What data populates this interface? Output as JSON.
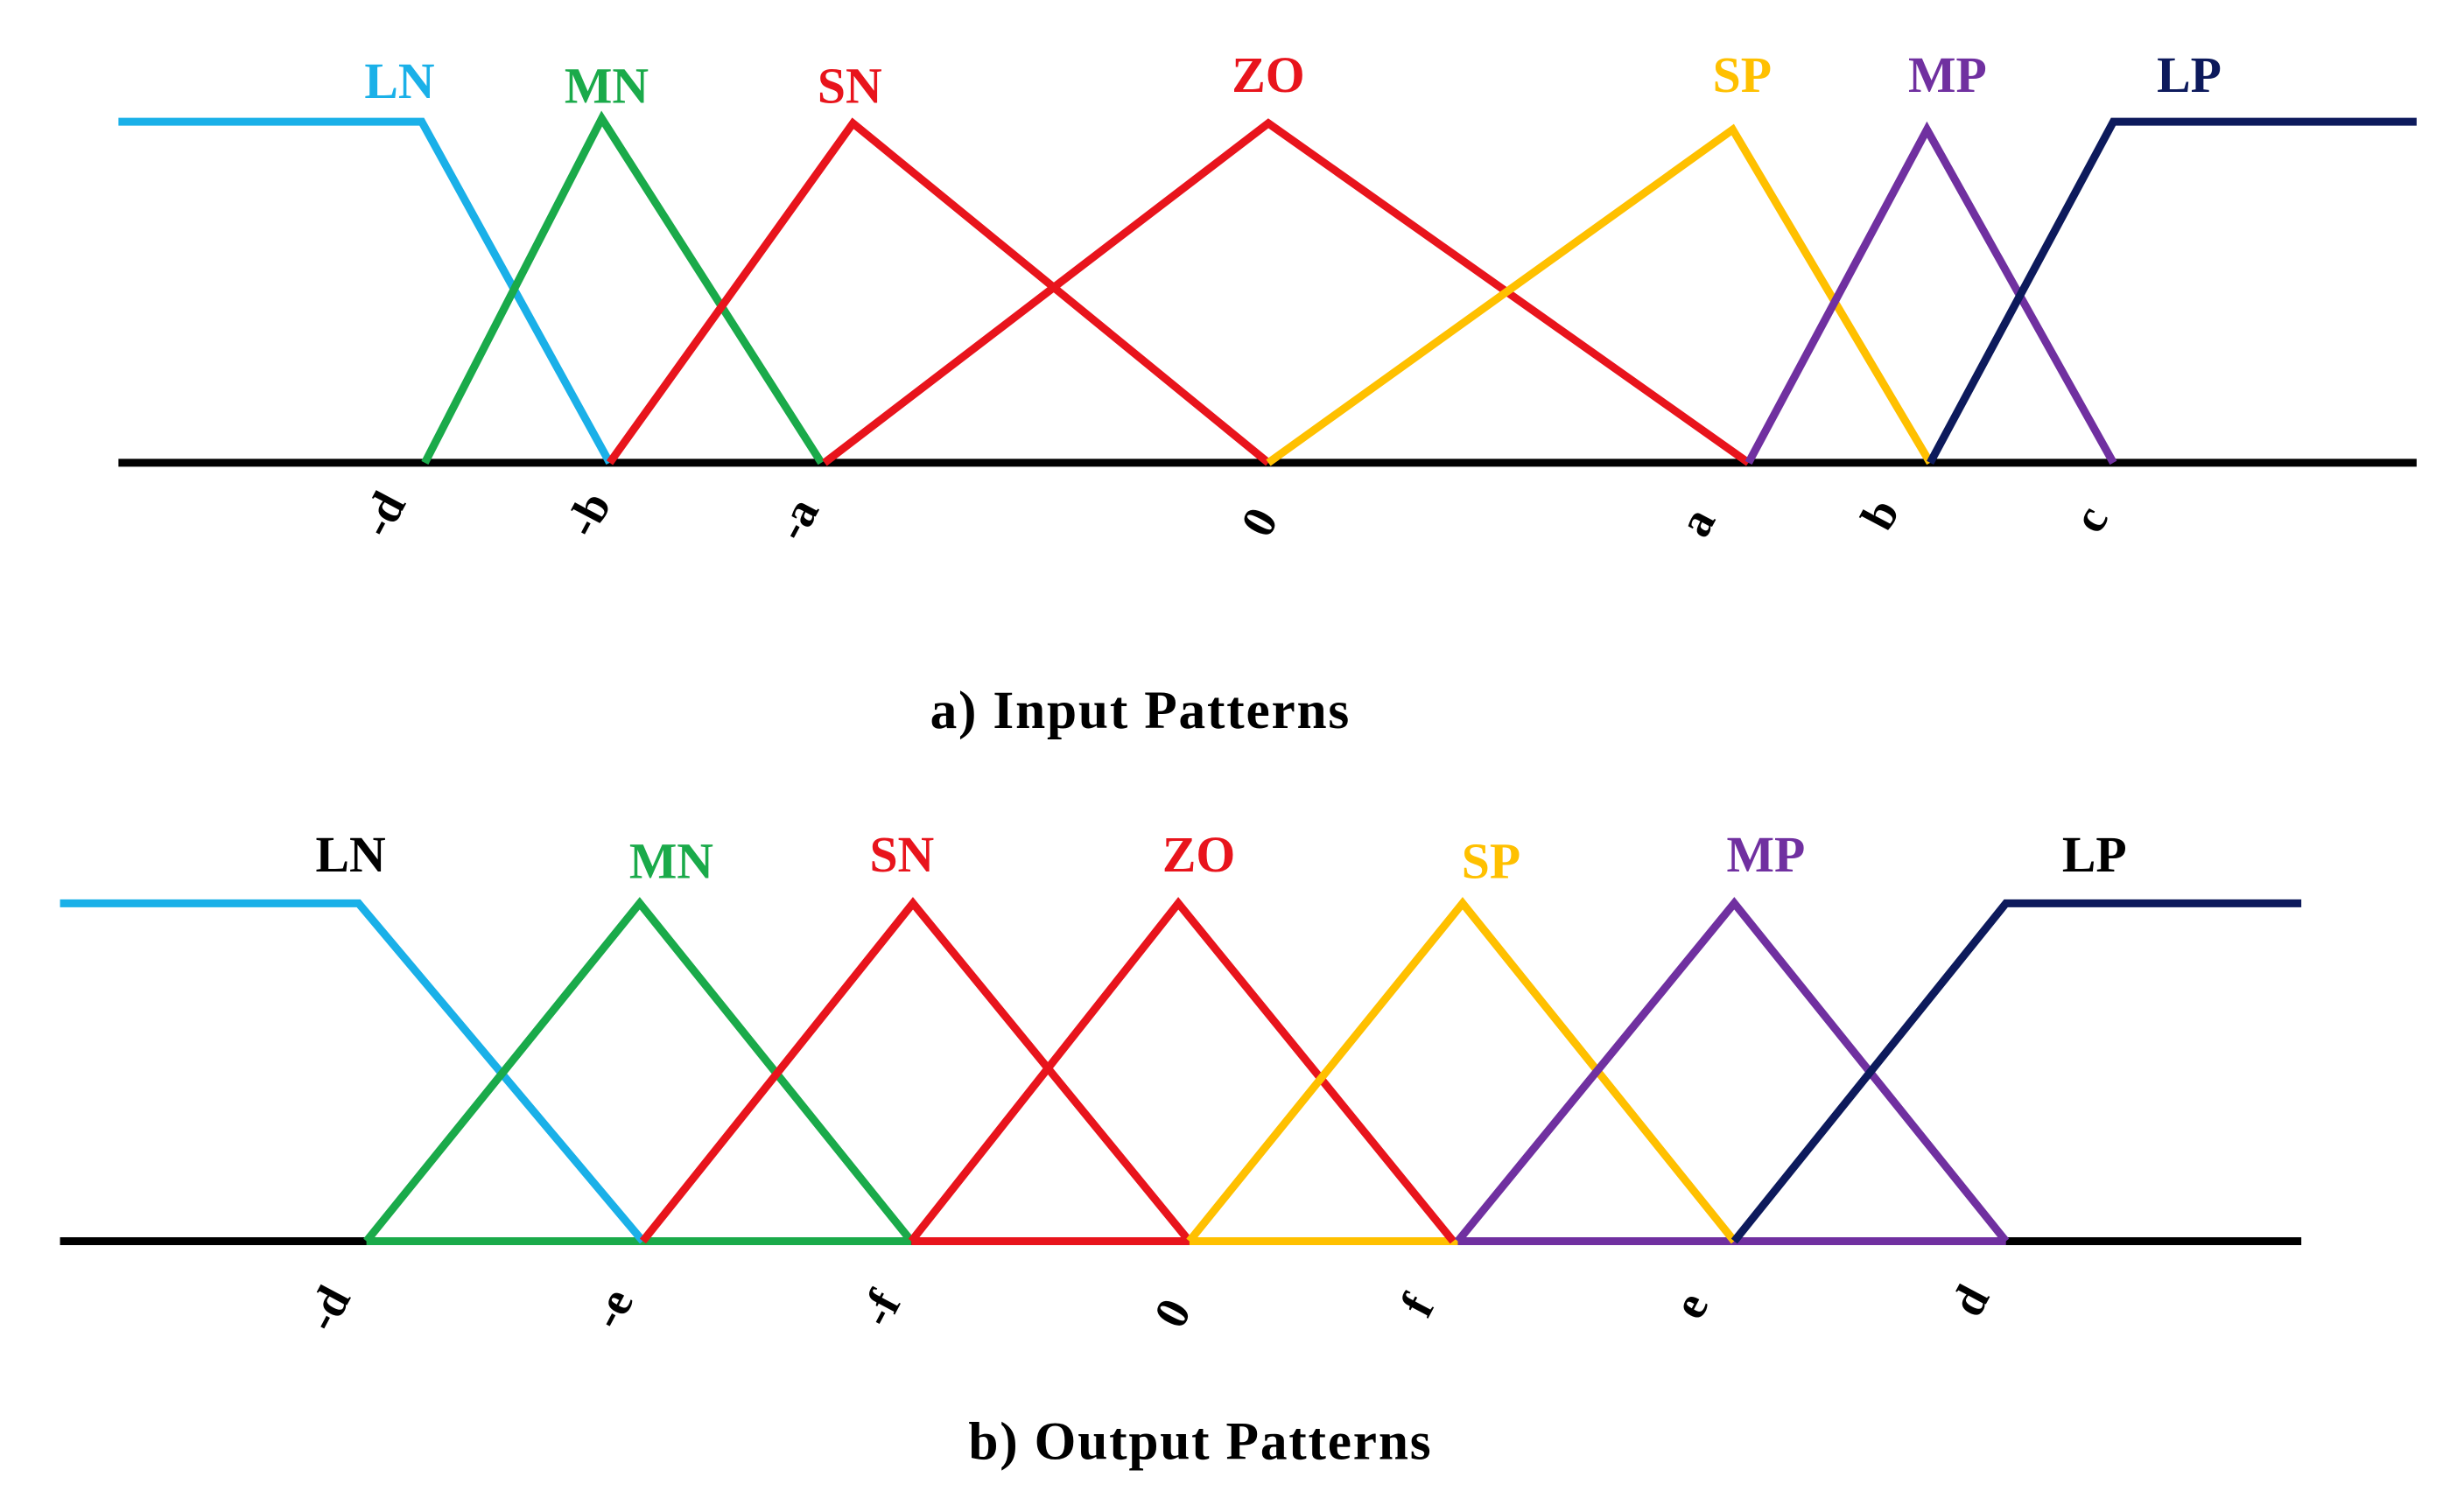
{
  "panels": [
    {
      "caption": "a) Input Patterns",
      "sets": [
        "LN",
        "MN",
        "SN",
        "ZO",
        "SP",
        "MP",
        "LP"
      ],
      "ticks": [
        "-d",
        "-b",
        "-a",
        "0",
        "a",
        "b",
        "c"
      ]
    },
    {
      "caption": "b) Output Patterns",
      "sets": [
        "LN",
        "MN",
        "SN",
        "ZO",
        "SP",
        "MP",
        "LP"
      ],
      "ticks": [
        "-d",
        "-e",
        "-f",
        "0",
        "f",
        "e",
        "d"
      ]
    }
  ]
}
